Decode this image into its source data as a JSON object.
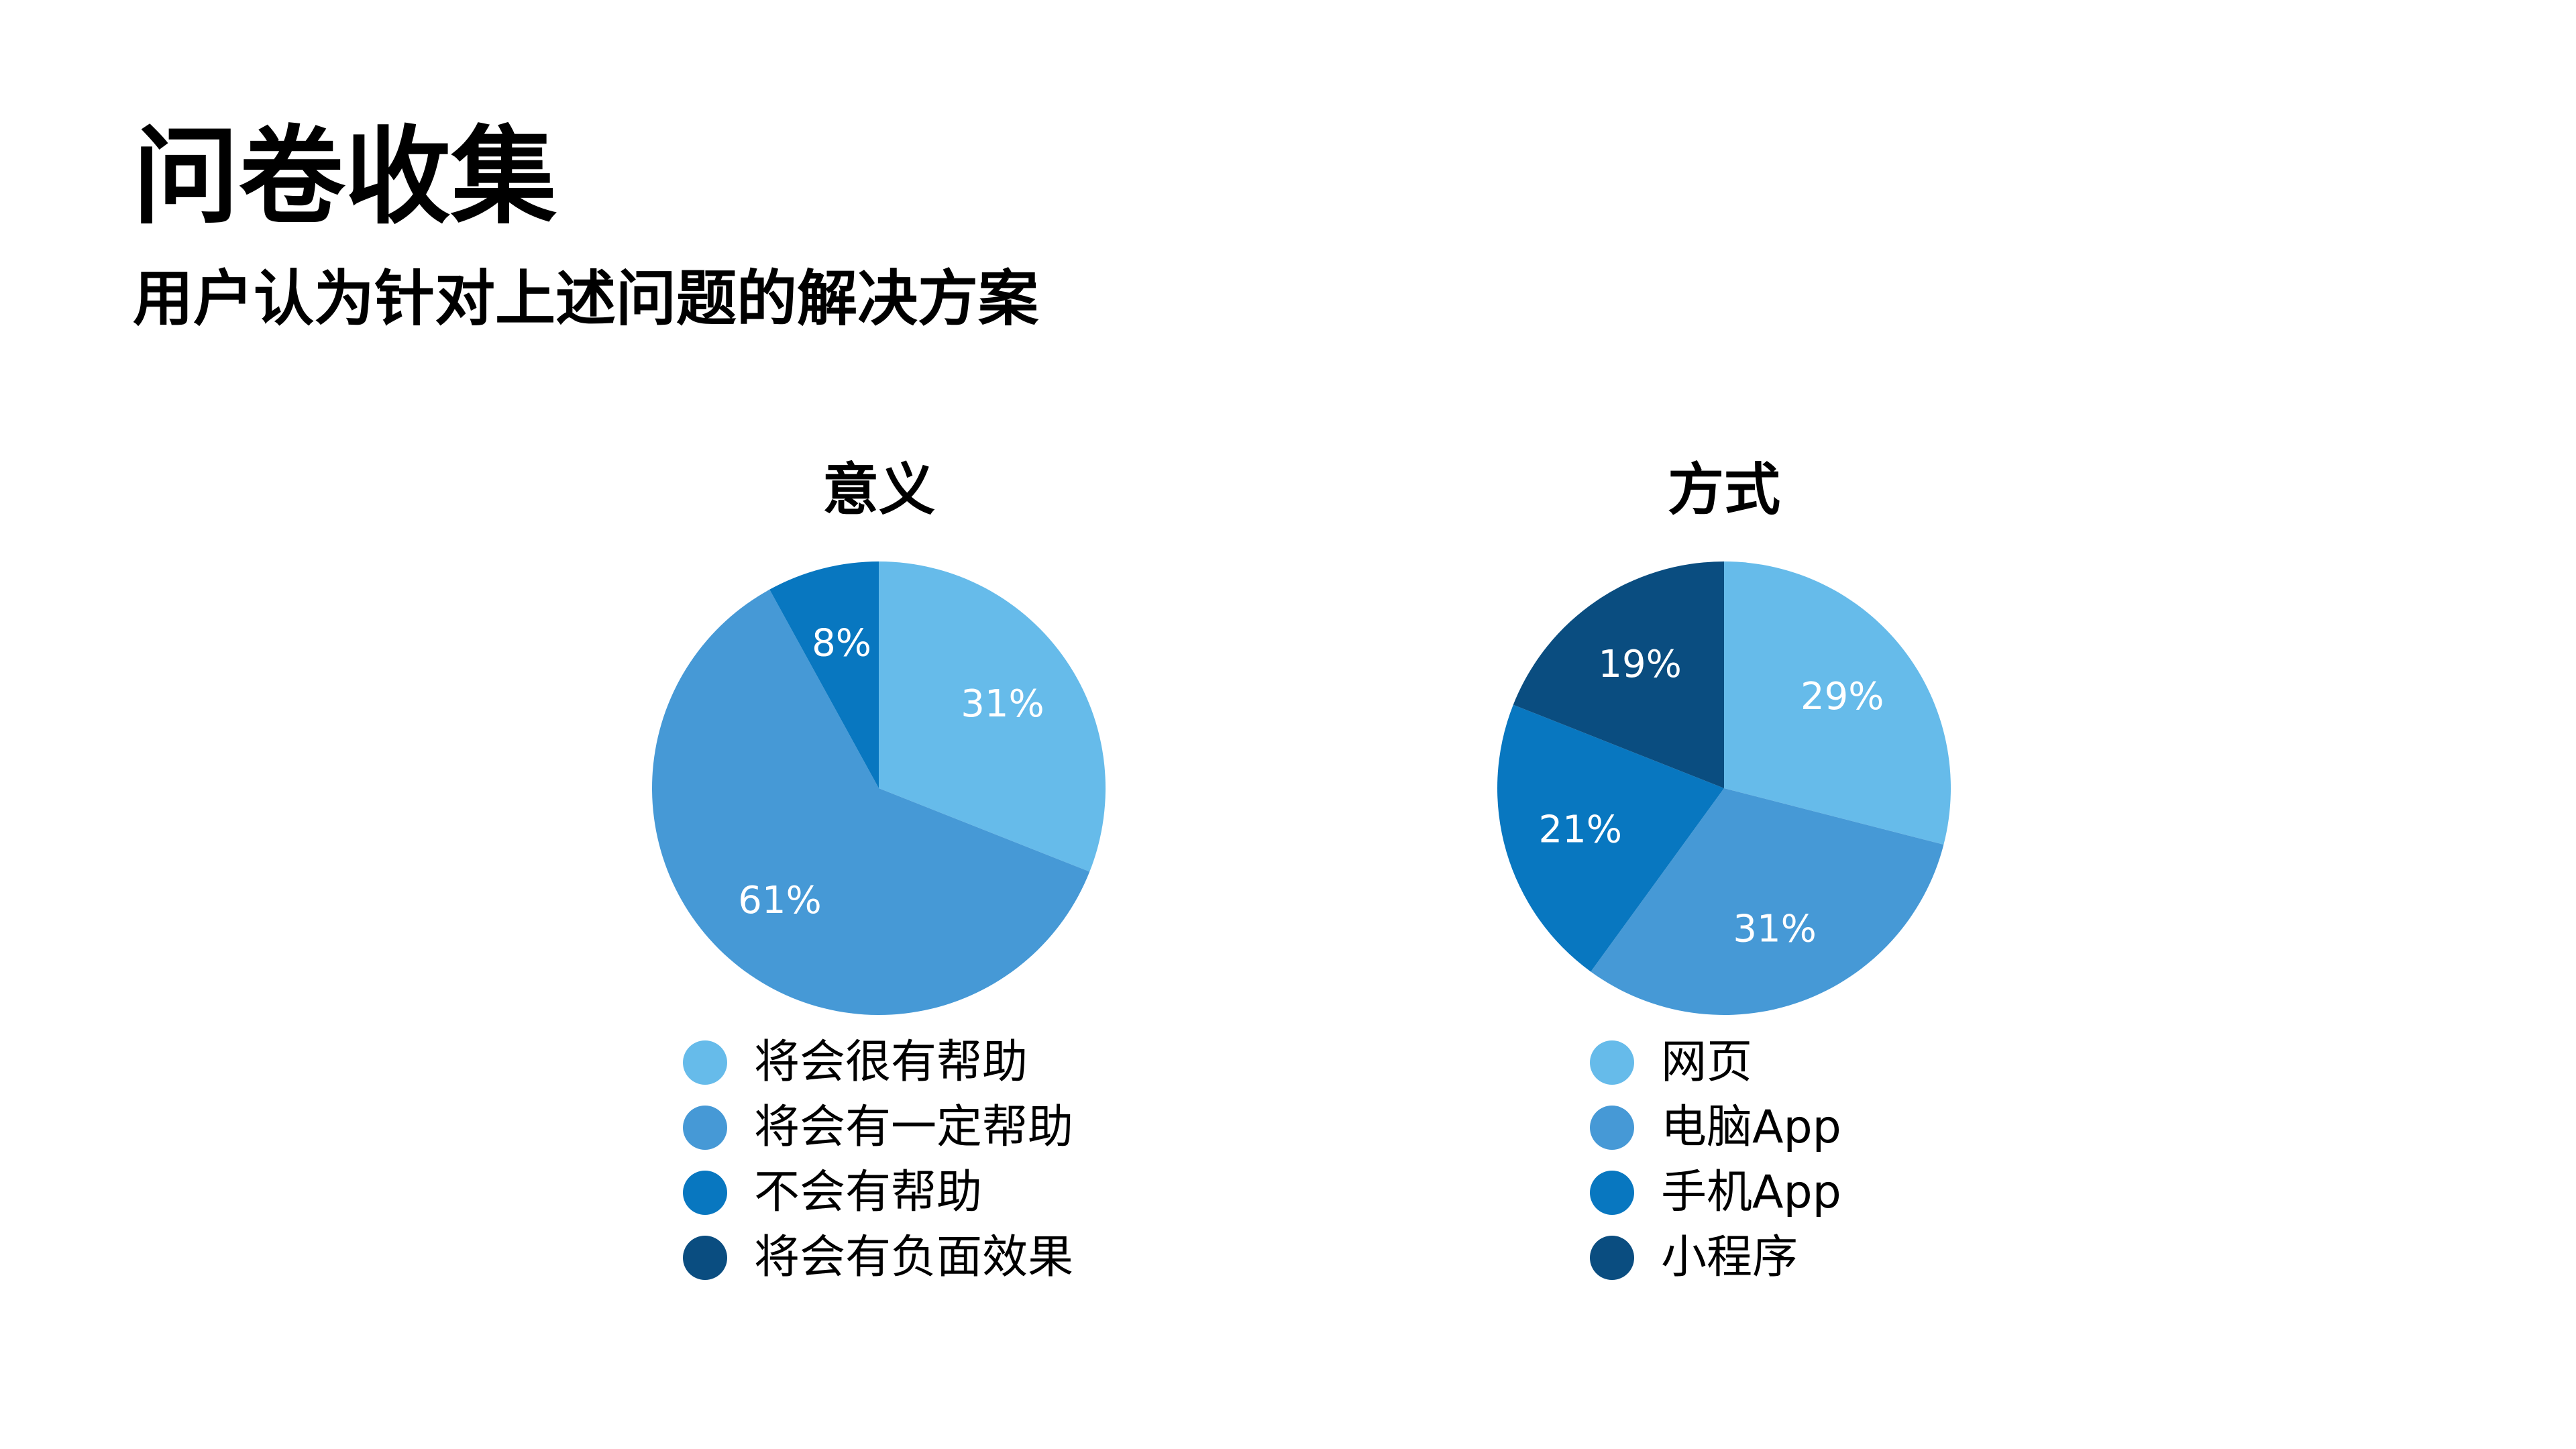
{
  "page": {
    "title": "问卷收集",
    "subtitle": "用户认为针对上述问题的解决方案"
  },
  "chart_data": [
    {
      "type": "pie",
      "title": "意义",
      "categories": [
        "将会很有帮助",
        "将会有一定帮助",
        "不会有帮助",
        "将会有负面效果"
      ],
      "values": [
        31,
        61,
        8,
        0
      ],
      "labels": [
        "31%",
        "61%",
        "8%",
        ""
      ],
      "colors": [
        "#66BBEA",
        "#4699D6",
        "#0877C0",
        "#0A4D80"
      ],
      "legend": "bottom"
    },
    {
      "type": "pie",
      "title": "方式",
      "categories": [
        "网页",
        "电脑App",
        "手机App",
        "小程序"
      ],
      "values": [
        29,
        31,
        21,
        19
      ],
      "labels": [
        "29%",
        "31%",
        "21%",
        "19%"
      ],
      "colors": [
        "#66BBEA",
        "#4699D6",
        "#0877C0",
        "#0A4D80"
      ],
      "legend": "bottom"
    }
  ]
}
